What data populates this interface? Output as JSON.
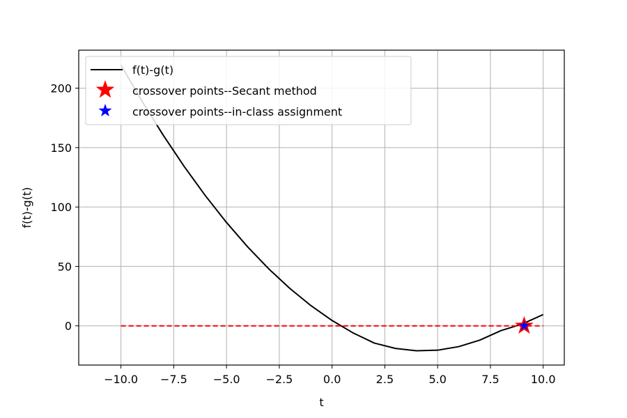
{
  "chart_data": {
    "type": "line",
    "xlabel": "t",
    "ylabel": "f(t)-g(t)",
    "xlim": [
      -12.0,
      11.0
    ],
    "ylim": [
      -33,
      232
    ],
    "x_ticks": [
      -10.0,
      -7.5,
      -5.0,
      -2.5,
      0.0,
      2.5,
      5.0,
      7.5,
      10.0
    ],
    "x_tick_labels": [
      "−10.0",
      "−7.5",
      "−5.0",
      "−2.5",
      "0.0",
      "2.5",
      "5.0",
      "7.5",
      "10.0"
    ],
    "y_ticks": [
      0,
      50,
      100,
      150,
      200
    ],
    "y_tick_labels": [
      "0",
      "50",
      "100",
      "150",
      "200"
    ],
    "grid": true,
    "legend_position": "upper-left",
    "series": [
      {
        "name": "f(t)-g(t)",
        "kind": "line",
        "color": "#000000",
        "x": [
          -10,
          -9,
          -8,
          -7,
          -6,
          -5,
          -4,
          -3,
          -2,
          -1,
          0,
          1,
          2,
          3,
          4,
          5,
          6,
          7,
          8,
          9,
          10
        ],
        "y": [
          219.5,
          189.0,
          160.5,
          134.0,
          109.5,
          87.0,
          66.5,
          48.0,
          31.5,
          17.0,
          4.5,
          -6.0,
          -14.5,
          -19.0,
          -21.0,
          -20.5,
          -17.5,
          -12.0,
          -4.0,
          1.5,
          9.5
        ]
      },
      {
        "name": "",
        "kind": "dashed-line",
        "color": "#ff0000",
        "x": [
          -10,
          10
        ],
        "y": [
          0,
          0
        ]
      },
      {
        "name": "crossover points--Secant method",
        "kind": "star-marker",
        "color": "#ff0000",
        "x": [
          9.1
        ],
        "y": [
          0
        ]
      },
      {
        "name": "crossover points--in-class assignment",
        "kind": "star-marker",
        "color": "#0000ff",
        "x": [
          9.1
        ],
        "y": [
          0
        ]
      }
    ]
  }
}
